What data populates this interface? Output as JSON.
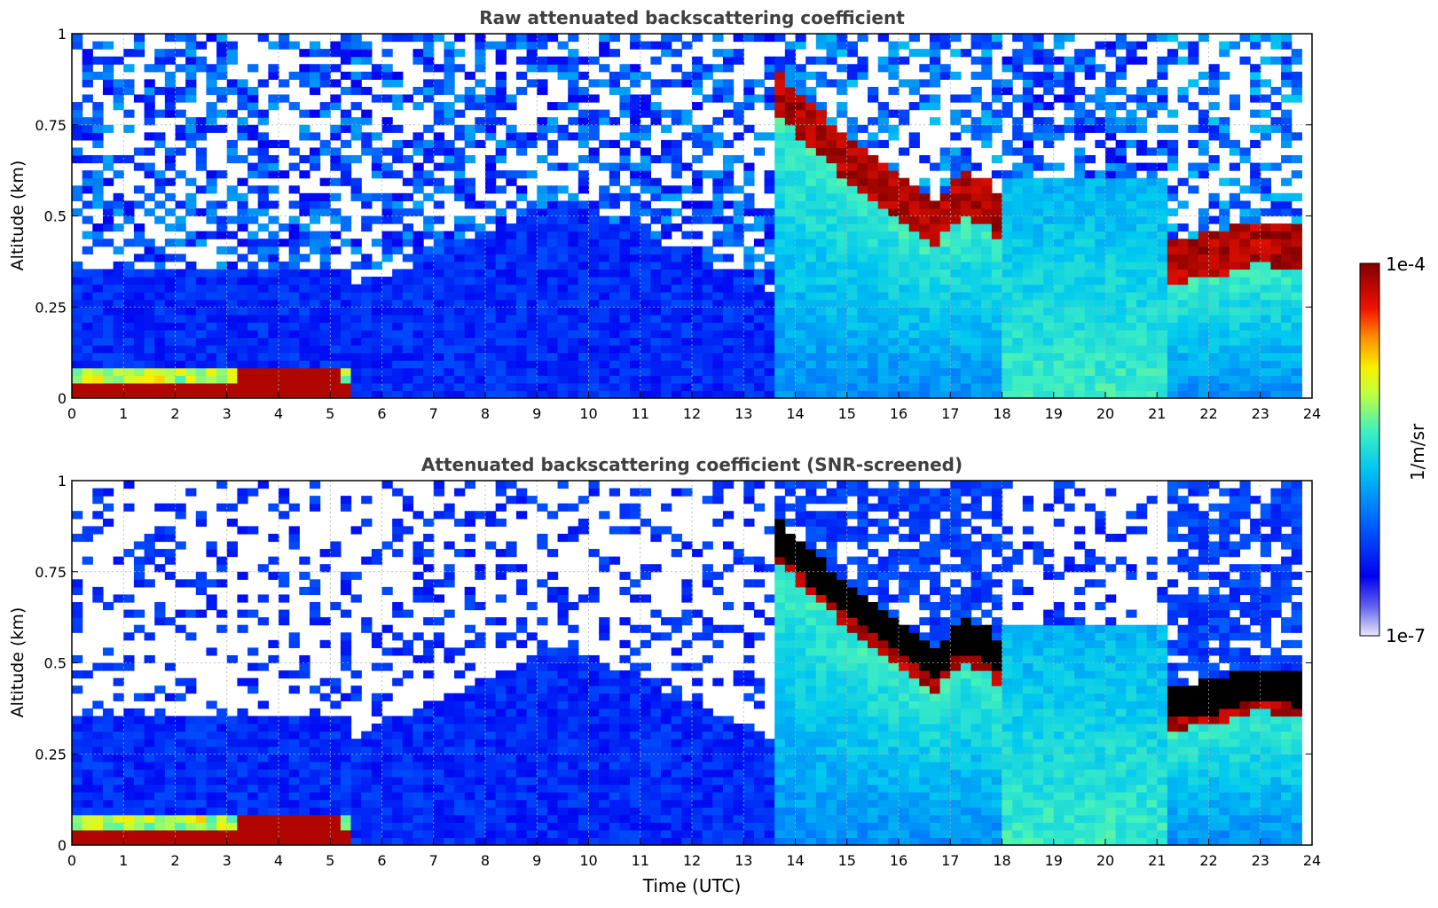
{
  "chart_data": [
    {
      "type": "heatmap",
      "title": "Raw attenuated backscattering coefficient",
      "xlabel": "",
      "ylabel": "Altitude (km)",
      "xlim": [
        0,
        24
      ],
      "ylim": [
        0,
        1
      ],
      "x_ticks": [
        "0",
        "1",
        "2",
        "3",
        "4",
        "5",
        "6",
        "7",
        "8",
        "9",
        "10",
        "11",
        "12",
        "13",
        "14",
        "15",
        "16",
        "17",
        "18",
        "19",
        "20",
        "21",
        "22",
        "23",
        "24"
      ],
      "y_ticks": [
        "0",
        "0.25",
        "0.5",
        "0.75",
        "1"
      ],
      "grid": true,
      "features": {
        "surface_aerosol_layer": [
          {
            "x": 0,
            "y": 0.04
          },
          {
            "x": 1,
            "y": 0.04
          },
          {
            "x": 2,
            "y": 0.04
          },
          {
            "x": 3,
            "y": 0.05
          },
          {
            "x": 4,
            "y": 0.07
          },
          {
            "x": 5,
            "y": 0.08
          },
          {
            "x": 5.3,
            "y": 0.08
          }
        ],
        "cloud_base_boundary": [
          {
            "x": 13.6,
            "y": 0.78
          },
          {
            "x": 14.2,
            "y": 0.7
          },
          {
            "x": 15,
            "y": 0.6
          },
          {
            "x": 16,
            "y": 0.5
          },
          {
            "x": 16.7,
            "y": 0.42
          },
          {
            "x": 17.2,
            "y": 0.5
          },
          {
            "x": 17.7,
            "y": 0.48
          },
          {
            "x": 18,
            "y": 0.42
          },
          {
            "x": 21.3,
            "y": 0.32
          },
          {
            "x": 22,
            "y": 0.33
          },
          {
            "x": 23,
            "y": 0.37
          },
          {
            "x": 23.8,
            "y": 0.35
          }
        ]
      }
    },
    {
      "type": "heatmap",
      "title": "Attenuated backscattering coefficient (SNR-screened)",
      "xlabel": "Time (UTC)",
      "ylabel": "Altitude (km)",
      "xlim": [
        0,
        24
      ],
      "ylim": [
        0,
        1
      ],
      "x_ticks": [
        "0",
        "1",
        "2",
        "3",
        "4",
        "5",
        "6",
        "7",
        "8",
        "9",
        "10",
        "11",
        "12",
        "13",
        "14",
        "15",
        "16",
        "17",
        "18",
        "19",
        "20",
        "21",
        "22",
        "23",
        "24"
      ],
      "y_ticks": [
        "0",
        "0.25",
        "0.5",
        "0.75",
        "1"
      ],
      "grid": true
    }
  ],
  "colorbar": {
    "label": "1/m/sr",
    "max_label": "1e-4",
    "min_label": "1e-7",
    "scale": "log",
    "range": [
      1e-07,
      0.0001
    ],
    "colormap": [
      "#e8e8f8",
      "#0000f0",
      "#0080ff",
      "#00e0f0",
      "#60ff90",
      "#f0f000",
      "#ff8000",
      "#e00000",
      "#800000"
    ]
  },
  "colors": {
    "title": "#404040",
    "axis": "#000000",
    "grid": "#b0b0b0"
  }
}
